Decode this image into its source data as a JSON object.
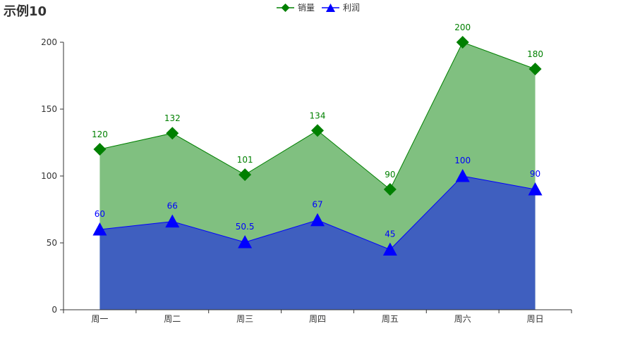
{
  "title": "示例10",
  "colors": {
    "series_sales": "#008000",
    "series_sales_area": "#80c080",
    "series_profit": "#0000ff",
    "series_profit_area": "#3f5fbf",
    "axis": "#333333"
  },
  "chart_data": {
    "type": "area",
    "title": "示例10",
    "categories": [
      "周一",
      "周二",
      "周三",
      "周四",
      "周五",
      "周六",
      "周日"
    ],
    "series": [
      {
        "name": "销量",
        "values": [
          120,
          132,
          101,
          134,
          90,
          200,
          180
        ],
        "labels": [
          "120",
          "132",
          "101",
          "134",
          "90",
          "200",
          "180"
        ],
        "marker": "diamond"
      },
      {
        "name": "利润",
        "values": [
          60,
          66,
          50.5,
          67,
          45,
          100,
          90
        ],
        "labels": [
          "60",
          "66",
          "50.5",
          "67",
          "45",
          "100",
          "90"
        ],
        "marker": "triangle"
      }
    ],
    "ylim": [
      0,
      200
    ],
    "yticks": [
      "0",
      "50",
      "100",
      "150",
      "200"
    ],
    "grid": false,
    "legend_position": "top-center",
    "xlabel": "",
    "ylabel": ""
  }
}
